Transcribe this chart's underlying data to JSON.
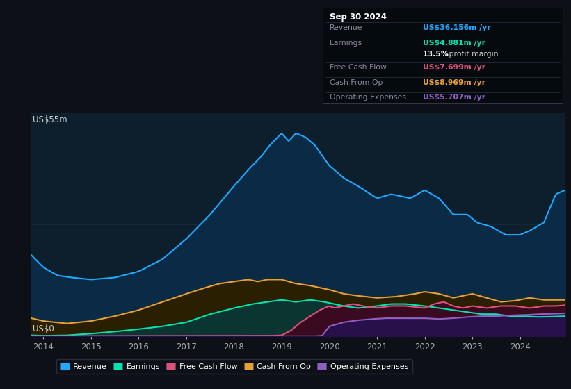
{
  "bg_color": "#0d1117",
  "plot_bg_color": "#0d1f2d",
  "grid_color": "#1e3a4a",
  "ylabel_text": "US$55m",
  "y0_text": "US$0",
  "ymax": 55,
  "revenue_color": "#1eaaff",
  "earnings_color": "#00e5b0",
  "fcf_color": "#e0507a",
  "cashop_color": "#e8a030",
  "opex_color": "#9060c0",
  "revenue_fill": "#0a2a45",
  "earnings_fill": "#0a3530",
  "fcf_fill": "#3a0a20",
  "cashop_fill": "#2a2000",
  "opex_fill": "#28104a",
  "info_box": {
    "date": "Sep 30 2024",
    "revenue_label": "Revenue",
    "revenue_val": "US$36.156m",
    "earnings_label": "Earnings",
    "earnings_val": "US$4.881m",
    "margin_text": "13.5%",
    "margin_suffix": " profit margin",
    "fcf_label": "Free Cash Flow",
    "fcf_val": "US$7.699m",
    "cashop_label": "Cash From Op",
    "cashop_val": "US$8.969m",
    "opex_label": "Operating Expenses",
    "opex_val": "US$5.707m",
    "per_yr": " /yr"
  },
  "legend_items": [
    "Revenue",
    "Earnings",
    "Free Cash Flow",
    "Cash From Op",
    "Operating Expenses"
  ]
}
